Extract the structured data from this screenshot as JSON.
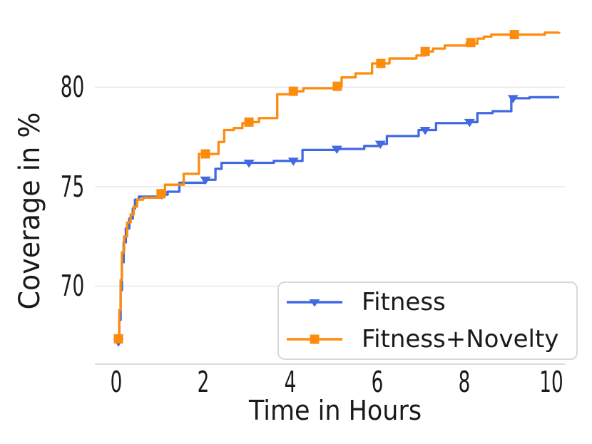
{
  "chart_data": {
    "type": "line",
    "title": "",
    "xlabel": "Time in Hours",
    "ylabel": "Coverage in %",
    "x_ticks": [
      0,
      2,
      4,
      6,
      8,
      10
    ],
    "y_ticks": [
      70,
      75,
      80
    ],
    "xlim": [
      0,
      10.2
    ],
    "ylim": [
      66,
      84.2
    ],
    "grid": "horizontal-only",
    "legend_position": "lower right",
    "line_style": "step-post",
    "colors": {
      "fitness_blue": "#4169e1",
      "novelty_orange": "#fd8c0e",
      "gridline": "#e8e8e8",
      "spine": "#cfcfcf",
      "text": "#1a1a1a",
      "legend_border": "#d8d8d8"
    },
    "series": [
      {
        "name": "Fitness",
        "color": "#4169e1",
        "marker": "triangle-down",
        "points": [
          [
            0.05,
            67.2
          ],
          [
            0.07,
            68.3
          ],
          [
            0.1,
            69.8
          ],
          [
            0.13,
            71.2
          ],
          [
            0.17,
            72.2
          ],
          [
            0.22,
            72.9
          ],
          [
            0.3,
            73.4
          ],
          [
            0.38,
            73.9
          ],
          [
            0.43,
            74.35
          ],
          [
            0.52,
            74.5
          ],
          [
            1.05,
            74.6
          ],
          [
            1.18,
            74.75
          ],
          [
            1.45,
            75.2
          ],
          [
            2.05,
            75.35
          ],
          [
            2.28,
            75.9
          ],
          [
            2.42,
            76.2
          ],
          [
            3.05,
            76.2
          ],
          [
            3.62,
            76.3
          ],
          [
            4.07,
            76.3
          ],
          [
            4.28,
            76.85
          ],
          [
            5.07,
            76.9
          ],
          [
            5.7,
            77.05
          ],
          [
            6.07,
            77.15
          ],
          [
            6.22,
            77.55
          ],
          [
            6.95,
            77.85
          ],
          [
            7.1,
            77.85
          ],
          [
            7.35,
            78.2
          ],
          [
            8.12,
            78.25
          ],
          [
            8.3,
            78.7
          ],
          [
            8.65,
            78.8
          ],
          [
            9.08,
            79.45
          ],
          [
            9.5,
            79.5
          ],
          [
            10.18,
            79.5
          ]
        ],
        "markers": [
          [
            0.05,
            67.2
          ],
          [
            1.05,
            74.6
          ],
          [
            2.05,
            75.35
          ],
          [
            3.05,
            76.2
          ],
          [
            4.07,
            76.3
          ],
          [
            5.07,
            76.9
          ],
          [
            6.07,
            77.15
          ],
          [
            7.1,
            77.85
          ],
          [
            8.12,
            78.25
          ],
          [
            9.12,
            79.45
          ]
        ]
      },
      {
        "name": "Fitness+Novelty",
        "color": "#fd8c0e",
        "marker": "square",
        "points": [
          [
            0.05,
            67.35
          ],
          [
            0.07,
            68.8
          ],
          [
            0.1,
            70.3
          ],
          [
            0.13,
            71.7
          ],
          [
            0.18,
            72.5
          ],
          [
            0.25,
            73.2
          ],
          [
            0.33,
            73.6
          ],
          [
            0.4,
            74.0
          ],
          [
            0.48,
            74.35
          ],
          [
            0.62,
            74.45
          ],
          [
            1.03,
            74.65
          ],
          [
            1.12,
            75.1
          ],
          [
            1.55,
            75.65
          ],
          [
            1.9,
            76.65
          ],
          [
            2.35,
            77.25
          ],
          [
            2.48,
            77.85
          ],
          [
            2.7,
            77.95
          ],
          [
            2.9,
            78.2
          ],
          [
            3.05,
            78.25
          ],
          [
            3.28,
            78.45
          ],
          [
            3.7,
            79.65
          ],
          [
            4.07,
            79.8
          ],
          [
            4.3,
            79.95
          ],
          [
            5.0,
            80.05
          ],
          [
            5.18,
            80.5
          ],
          [
            5.5,
            80.7
          ],
          [
            5.88,
            81.2
          ],
          [
            6.28,
            81.45
          ],
          [
            6.9,
            81.6
          ],
          [
            7.1,
            81.8
          ],
          [
            7.28,
            81.95
          ],
          [
            7.55,
            82.1
          ],
          [
            8.05,
            82.2
          ],
          [
            8.3,
            82.45
          ],
          [
            8.45,
            82.55
          ],
          [
            8.62,
            82.65
          ],
          [
            9.85,
            82.75
          ],
          [
            10.18,
            82.78
          ]
        ],
        "markers": [
          [
            0.05,
            67.35
          ],
          [
            1.03,
            74.65
          ],
          [
            2.05,
            76.65
          ],
          [
            3.05,
            78.25
          ],
          [
            4.07,
            79.8
          ],
          [
            5.08,
            80.05
          ],
          [
            6.08,
            81.2
          ],
          [
            7.1,
            81.8
          ],
          [
            8.15,
            82.25
          ],
          [
            9.15,
            82.65
          ]
        ]
      }
    ]
  }
}
